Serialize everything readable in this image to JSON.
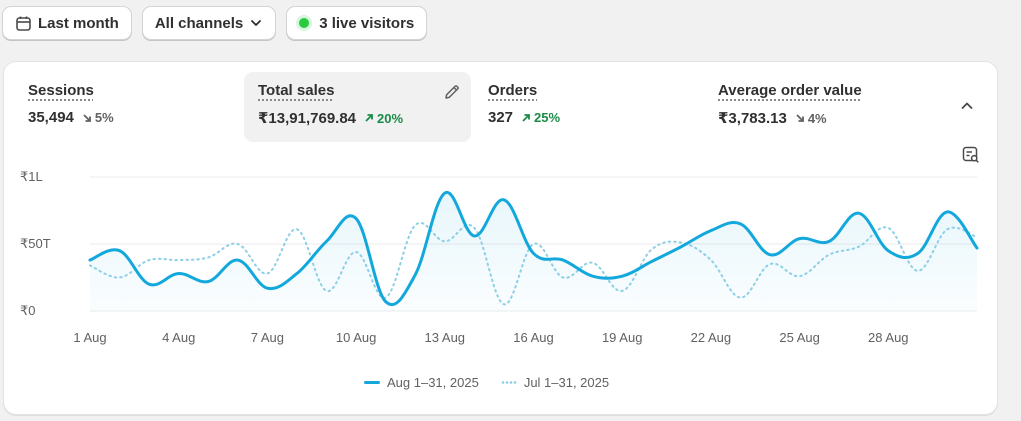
{
  "toolbar": {
    "date_range": "Last month",
    "channels": "All channels",
    "live_visitors": "3 live visitors"
  },
  "metrics": [
    {
      "label": "Sessions",
      "value": "35,494",
      "delta": "5%",
      "trend": "down"
    },
    {
      "label": "Total sales",
      "value": "₹13,91,769.84",
      "delta": "20%",
      "trend": "up",
      "selected": true
    },
    {
      "label": "Orders",
      "value": "327",
      "delta": "25%",
      "trend": "up"
    },
    {
      "label": "Average order value",
      "value": "₹3,783.13",
      "delta": "4%",
      "trend": "down"
    }
  ],
  "colors": {
    "current": "#13a8dc",
    "previous": "#8ccfe6",
    "up": "#1a8b47",
    "down": "#616161",
    "live_dot": "#29c940"
  },
  "icons": {
    "calendar": "calendar-icon",
    "chevron_down": "chevron-down-icon",
    "edit": "pencil-icon",
    "collapse": "chevron-up-icon",
    "chart_options": "chart-options-icon"
  },
  "chart_data": {
    "type": "line",
    "title": "",
    "xlabel": "",
    "ylabel": "",
    "x": [
      1,
      2,
      3,
      4,
      5,
      6,
      7,
      8,
      9,
      10,
      11,
      12,
      13,
      14,
      15,
      16,
      17,
      18,
      19,
      20,
      21,
      22,
      23,
      24,
      25,
      26,
      27,
      28,
      29,
      30,
      31
    ],
    "x_tick_labels": [
      "1 Aug",
      "4 Aug",
      "7 Aug",
      "10 Aug",
      "13 Aug",
      "16 Aug",
      "19 Aug",
      "22 Aug",
      "25 Aug",
      "28 Aug"
    ],
    "x_tick_positions": [
      1,
      4,
      7,
      10,
      13,
      16,
      19,
      22,
      25,
      28
    ],
    "y_tick_labels": [
      "₹0",
      "₹50T",
      "₹1L"
    ],
    "y_tick_values": [
      0,
      50000,
      100000
    ],
    "ylim": [
      0,
      100000
    ],
    "grid": true,
    "legend_position": "bottom",
    "series": [
      {
        "name": "Aug 1–31, 2025",
        "style": "solid",
        "values": [
          38000,
          45000,
          20000,
          28000,
          22000,
          38000,
          17000,
          28000,
          52000,
          69000,
          7000,
          27000,
          88000,
          56000,
          83000,
          43000,
          38000,
          26000,
          26000,
          37000,
          48000,
          60000,
          65000,
          42000,
          54000,
          52000,
          73000,
          45000,
          43000,
          74000,
          47000
        ]
      },
      {
        "name": "Jul 1–31, 2025",
        "style": "dotted",
        "values": [
          34000,
          25000,
          38000,
          38000,
          40000,
          50000,
          28000,
          61000,
          15000,
          44000,
          10000,
          64000,
          52000,
          62000,
          5000,
          50000,
          25000,
          36000,
          15000,
          46000,
          51000,
          38000,
          10000,
          35000,
          26000,
          42000,
          48000,
          62000,
          30000,
          61000,
          55000
        ]
      }
    ]
  },
  "legend": {
    "current": "Aug 1–31, 2025",
    "previous": "Jul 1–31, 2025"
  }
}
